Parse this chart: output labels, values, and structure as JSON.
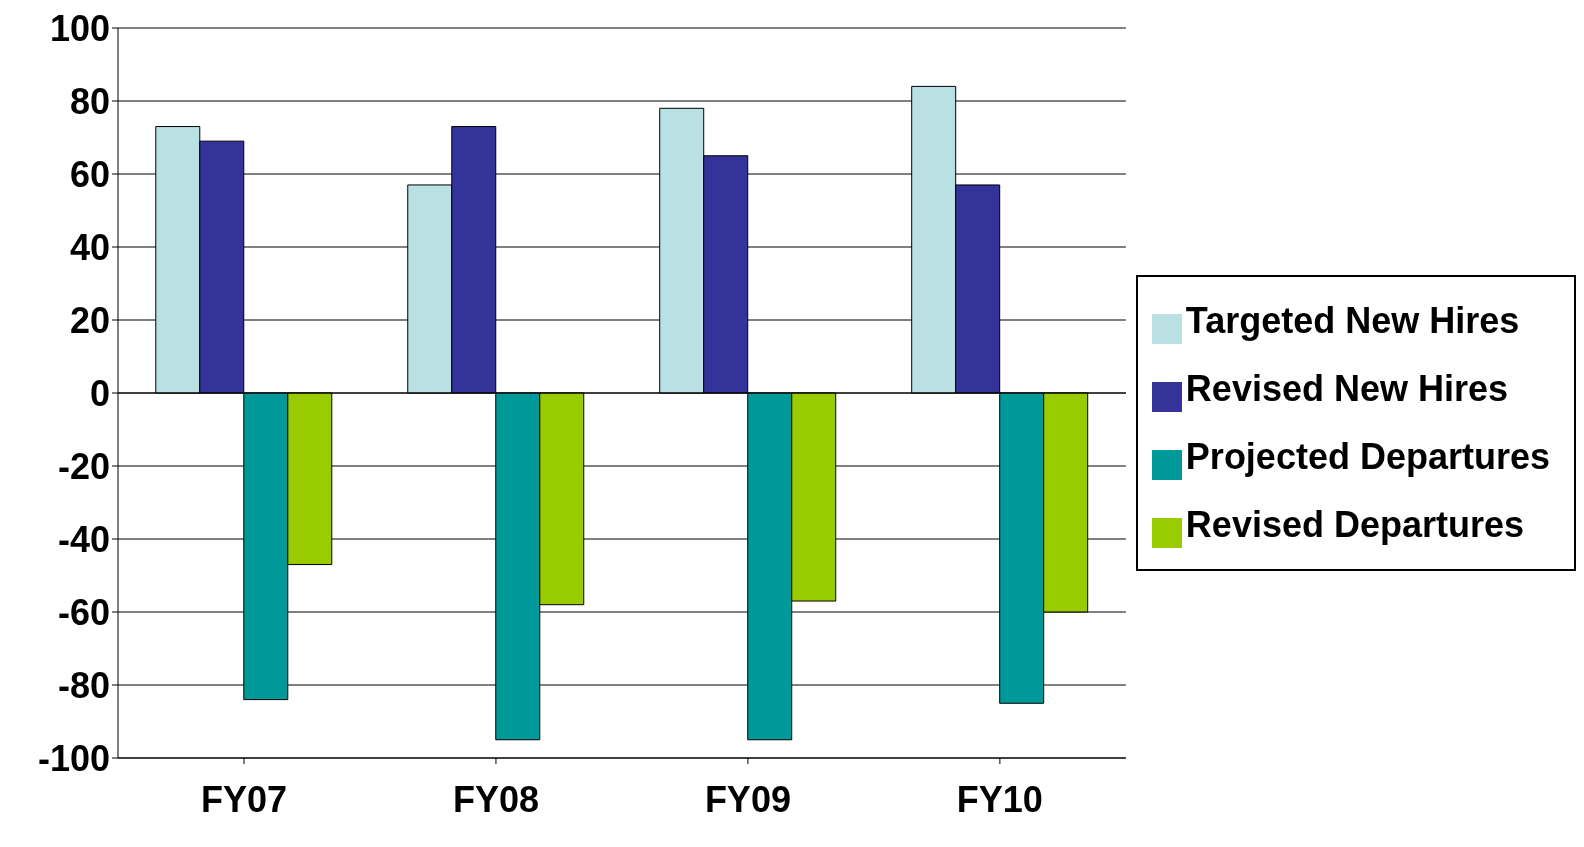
{
  "chart_data": {
    "type": "bar",
    "categories": [
      "FY07",
      "FY08",
      "FY09",
      "FY10"
    ],
    "series": [
      {
        "name": "Targeted New Hires",
        "color": "#b9e0e3",
        "values": [
          73,
          57,
          78,
          84
        ]
      },
      {
        "name": "Revised New Hires",
        "color": "#333399",
        "values": [
          69,
          73,
          65,
          57
        ]
      },
      {
        "name": "Projected Departures",
        "color": "#009999",
        "values": [
          -84,
          -95,
          -95,
          -85
        ]
      },
      {
        "name": "Revised Departures",
        "color": "#99cc00",
        "values": [
          -47,
          -58,
          -57,
          -60
        ]
      }
    ],
    "ylim": [
      -100,
      100
    ],
    "yticks": [
      -100,
      -80,
      -60,
      -40,
      -20,
      0,
      20,
      40,
      60,
      80,
      100
    ],
    "grid": "y",
    "legend": "right"
  }
}
